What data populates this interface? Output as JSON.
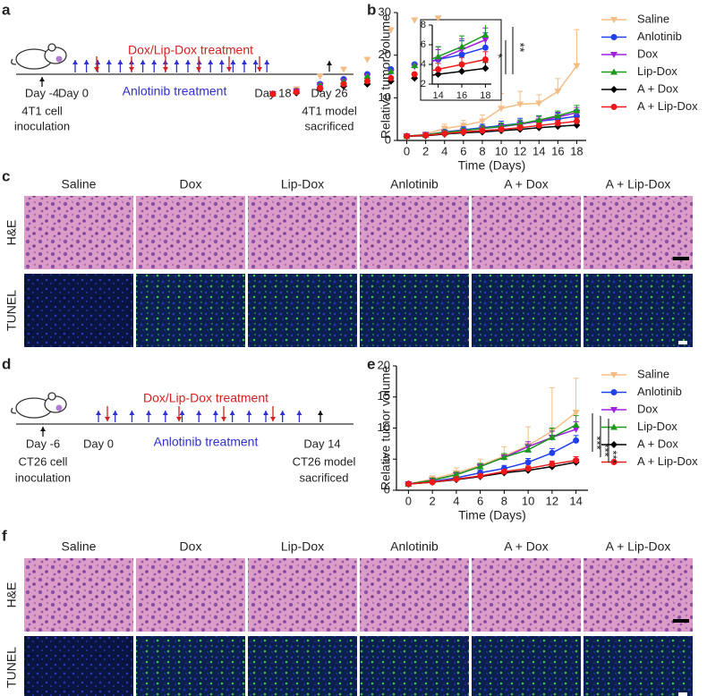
{
  "panel_labels": [
    "a",
    "b",
    "c",
    "d",
    "e",
    "f"
  ],
  "timeline_a": {
    "treatment_label": "Dox/Lip-Dox treatment",
    "anlotinib_label": "Anlotinib treatment",
    "days": [
      "Day -4",
      "Day 0",
      "Day 18",
      "Day 26"
    ],
    "start_label": [
      "4T1 cell",
      "inoculation"
    ],
    "end_label": [
      "4T1 model",
      "sacrificed"
    ]
  },
  "timeline_d": {
    "treatment_label": "Dox/Lip-Dox treatment",
    "anlotinib_label": "Anlotinib treatment",
    "days": [
      "Day -6",
      "Day 0",
      "Day 14"
    ],
    "start_label": [
      "CT26 cell",
      "inoculation"
    ],
    "end_label": [
      "CT26 model",
      "sacrificed"
    ]
  },
  "histology_c": {
    "columns": [
      "Saline",
      "Dox",
      "Lip-Dox",
      "Anlotinib",
      "A + Dox",
      "A + Lip-Dox"
    ],
    "rows": [
      "H&E",
      "TUNEL"
    ]
  },
  "histology_f": {
    "columns": [
      "Saline",
      "Dox",
      "Lip-Dox",
      "Anlotinib",
      "A + Dox",
      "A + Lip-Dox"
    ],
    "rows": [
      "H&E",
      "TUNEL"
    ]
  },
  "chart_data": [
    {
      "type": "line",
      "xlabel": "Time (Days)",
      "ylabel": "Relative tumor volume",
      "x": [
        0,
        2,
        4,
        6,
        8,
        10,
        12,
        14,
        16,
        18
      ],
      "xlim": [
        -1,
        19
      ],
      "xticks": [
        0,
        2,
        4,
        6,
        8,
        10,
        12,
        14,
        16,
        18
      ],
      "ylim": [
        0,
        30
      ],
      "yticks": [
        0,
        10,
        20,
        30
      ],
      "series": [
        {
          "name": "Saline",
          "color": "#f5bd85",
          "marker": "triangle-down",
          "values": [
            1,
            1.5,
            2.8,
            3.5,
            4.5,
            7.5,
            8.5,
            8.7,
            11.5,
            17.5
          ],
          "errors": [
            0.3,
            0.5,
            1,
            1.2,
            1.5,
            3.5,
            3,
            2,
            3,
            8.5
          ]
        },
        {
          "name": "Anlotinib",
          "color": "#2040f0",
          "marker": "circle",
          "values": [
            1,
            1.3,
            2,
            2.5,
            3,
            3.5,
            4,
            4.5,
            5,
            5.7
          ],
          "errors": [
            0.2,
            0.3,
            0.5,
            0.7,
            0.8,
            1,
            1.2,
            1.3,
            1.4,
            1.5
          ]
        },
        {
          "name": "Dox",
          "color": "#a020e0",
          "marker": "triangle-down",
          "values": [
            1,
            1.3,
            1.9,
            2.3,
            2.8,
            3.2,
            3.8,
            4.5,
            5.5,
            6.5
          ],
          "errors": [
            0.2,
            0.3,
            0.4,
            0.5,
            0.6,
            0.8,
            0.9,
            1,
            1.1,
            1.2
          ]
        },
        {
          "name": "Lip-Dox",
          "color": "#1a9a1a",
          "marker": "triangle-up",
          "values": [
            1,
            1.3,
            1.9,
            2.3,
            2.8,
            3.3,
            3.9,
            4.8,
            5.8,
            7
          ],
          "errors": [
            0.2,
            0.3,
            0.4,
            0.5,
            0.6,
            0.8,
            0.9,
            1,
            1.1,
            1.2
          ]
        },
        {
          "name": "A + Dox",
          "color": "#000000",
          "marker": "diamond",
          "values": [
            1,
            1.1,
            1.5,
            1.8,
            2,
            2.3,
            2.6,
            3,
            3.3,
            3.6
          ],
          "errors": [
            0.1,
            0.2,
            0.3,
            0.3,
            0.4,
            0.4,
            0.5,
            0.5,
            0.6,
            0.6
          ]
        },
        {
          "name": "A + Lip-Dox",
          "color": "#f01818",
          "marker": "circle",
          "values": [
            1,
            1.2,
            1.6,
            2,
            2.3,
            2.6,
            3,
            3.5,
            4,
            4.5
          ],
          "errors": [
            0.1,
            0.2,
            0.3,
            0.4,
            0.4,
            0.5,
            0.6,
            0.6,
            0.7,
            0.8
          ]
        }
      ],
      "inset": {
        "xlim": [
          13.5,
          18.5
        ],
        "xticks": [
          14,
          16,
          18
        ],
        "ylim": [
          2,
          8
        ],
        "yticks": [
          2,
          4,
          6,
          8
        ],
        "annotations": [
          "*",
          "**"
        ]
      }
    },
    {
      "type": "line",
      "xlabel": "Time (Days)",
      "ylabel": "Relative tumor volume",
      "x": [
        0,
        2,
        4,
        6,
        8,
        10,
        12,
        14
      ],
      "xlim": [
        -1,
        15
      ],
      "xticks": [
        0,
        2,
        4,
        6,
        8,
        10,
        12,
        14
      ],
      "ylim": [
        0,
        20
      ],
      "yticks": [
        0,
        5,
        10,
        15,
        20
      ],
      "series": [
        {
          "name": "Saline",
          "color": "#f5bd85",
          "marker": "triangle-down",
          "values": [
            1,
            1.8,
            2.8,
            4,
            5.5,
            7.2,
            9.5,
            12.5
          ],
          "errors": [
            0.2,
            0.5,
            0.8,
            1,
            1.5,
            3,
            7,
            5.5
          ]
        },
        {
          "name": "Anlotinib",
          "color": "#2040f0",
          "marker": "circle",
          "values": [
            1,
            1.4,
            2,
            2.8,
            3.5,
            4.5,
            6,
            8
          ],
          "errors": [
            0.1,
            0.2,
            0.3,
            0.4,
            0.5,
            0.6,
            0.7,
            0.8
          ]
        },
        {
          "name": "Dox",
          "color": "#a020e0",
          "marker": "triangle-down",
          "values": [
            1,
            1.6,
            2.5,
            3.8,
            5.3,
            7,
            8.5,
            9.8
          ],
          "errors": [
            0.1,
            0.3,
            0.4,
            0.5,
            0.6,
            0.8,
            1,
            1.2
          ]
        },
        {
          "name": "Lip-Dox",
          "color": "#1a9a1a",
          "marker": "triangle-up",
          "values": [
            1,
            1.6,
            2.5,
            3.8,
            5.3,
            6.5,
            8.5,
            10.5
          ],
          "errors": [
            0.1,
            0.3,
            0.4,
            0.5,
            0.6,
            0.8,
            1.5,
            1.5
          ]
        },
        {
          "name": "A + Dox",
          "color": "#000000",
          "marker": "diamond",
          "values": [
            1,
            1.3,
            1.7,
            2.2,
            2.8,
            3.2,
            3.8,
            4.5
          ],
          "errors": [
            0.1,
            0.1,
            0.2,
            0.2,
            0.3,
            0.3,
            0.4,
            0.5
          ]
        },
        {
          "name": "A + Lip-Dox",
          "color": "#f01818",
          "marker": "circle",
          "values": [
            1,
            1.3,
            1.8,
            2.3,
            3,
            3.5,
            4.2,
            4.8
          ],
          "errors": [
            0.1,
            0.1,
            0.2,
            0.2,
            0.3,
            0.4,
            0.5,
            0.6
          ]
        }
      ],
      "annotations": [
        "***",
        "***",
        "***"
      ]
    }
  ]
}
